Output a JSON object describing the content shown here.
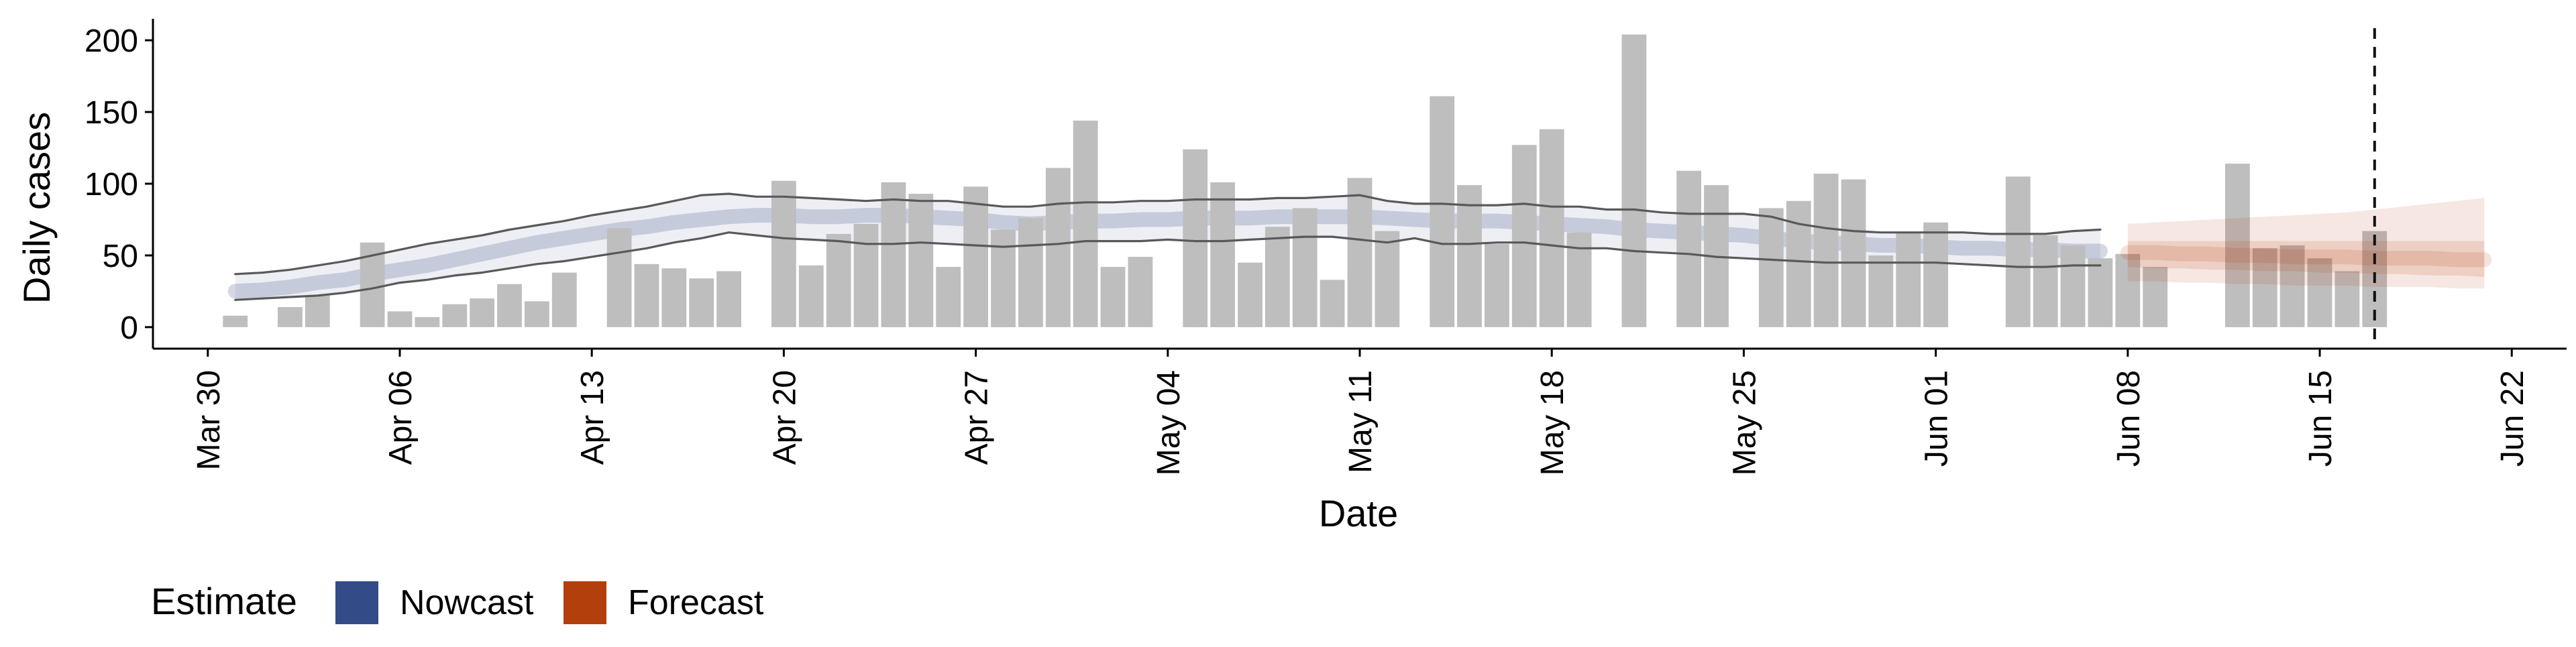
{
  "chart_data": {
    "type": "bar",
    "title": "",
    "xlabel": "Date",
    "ylabel": "Daily cases",
    "ylim": [
      -15,
      215
    ],
    "yticks": [
      0,
      50,
      100,
      150,
      200
    ],
    "x_range": [
      "2020-03-28",
      "2020-06-24"
    ],
    "xticks": [
      {
        "date": "2020-03-30",
        "label": "Mar 30"
      },
      {
        "date": "2020-04-06",
        "label": "Apr 06"
      },
      {
        "date": "2020-04-13",
        "label": "Apr 13"
      },
      {
        "date": "2020-04-20",
        "label": "Apr 20"
      },
      {
        "date": "2020-04-27",
        "label": "Apr 27"
      },
      {
        "date": "2020-05-04",
        "label": "May 04"
      },
      {
        "date": "2020-05-11",
        "label": "May 11"
      },
      {
        "date": "2020-05-18",
        "label": "May 18"
      },
      {
        "date": "2020-05-25",
        "label": "May 25"
      },
      {
        "date": "2020-06-01",
        "label": "Jun 01"
      },
      {
        "date": "2020-06-08",
        "label": "Jun 08"
      },
      {
        "date": "2020-06-15",
        "label": "Jun 15"
      },
      {
        "date": "2020-06-22",
        "label": "Jun 22"
      }
    ],
    "reported_cases": {
      "start_date": "2020-03-31",
      "values": [
        8,
        0,
        14,
        22,
        0,
        59,
        11,
        7,
        16,
        20,
        30,
        18,
        38,
        0,
        69,
        44,
        41,
        34,
        39,
        0,
        102,
        43,
        65,
        72,
        101,
        93,
        42,
        98,
        68,
        76,
        111,
        144,
        42,
        49,
        0,
        124,
        101,
        45,
        70,
        83,
        33,
        104,
        67,
        0,
        161,
        99,
        58,
        127,
        138,
        66,
        0,
        204,
        0,
        109,
        99,
        0,
        83,
        88,
        107,
        103,
        50,
        66,
        73,
        0,
        0,
        105,
        64,
        57,
        48,
        51,
        42,
        0,
        0,
        114,
        55,
        57,
        48,
        39,
        67
      ],
      "color": "#bebebe"
    },
    "nowcast": {
      "start_date": "2020-03-31",
      "median": [
        25,
        26,
        28,
        31,
        33,
        37,
        40,
        43,
        47,
        51,
        55,
        59,
        62,
        65,
        68,
        70,
        73,
        75,
        77,
        78,
        78,
        77,
        77,
        78,
        78,
        77,
        76,
        75,
        73,
        72,
        73,
        74,
        74,
        75,
        75,
        76,
        76,
        76,
        77,
        77,
        77,
        77,
        76,
        75,
        74,
        74,
        74,
        73,
        72,
        71,
        70,
        68,
        67,
        66,
        65,
        64,
        62,
        60,
        59,
        58,
        57,
        57,
        56,
        55,
        55,
        54,
        54,
        53,
        53
      ],
      "lower": [
        19,
        20,
        21,
        22,
        24,
        27,
        31,
        33,
        36,
        38,
        41,
        44,
        46,
        49,
        52,
        55,
        59,
        62,
        66,
        64,
        62,
        61,
        60,
        58,
        58,
        59,
        58,
        57,
        56,
        57,
        58,
        60,
        60,
        60,
        61,
        60,
        60,
        61,
        62,
        63,
        63,
        61,
        59,
        62,
        58,
        58,
        59,
        59,
        57,
        55,
        55,
        53,
        52,
        51,
        49,
        48,
        47,
        46,
        45,
        45,
        45,
        45,
        45,
        44,
        43,
        42,
        42,
        43,
        43
      ],
      "upper": [
        37,
        38,
        40,
        43,
        46,
        50,
        54,
        58,
        61,
        64,
        68,
        71,
        74,
        78,
        81,
        84,
        88,
        92,
        93,
        91,
        91,
        90,
        89,
        88,
        89,
        88,
        88,
        86,
        84,
        84,
        86,
        87,
        87,
        88,
        88,
        89,
        89,
        89,
        90,
        90,
        91,
        92,
        88,
        86,
        86,
        85,
        85,
        86,
        84,
        84,
        82,
        82,
        80,
        79,
        79,
        79,
        77,
        72,
        69,
        67,
        66,
        66,
        66,
        66,
        65,
        65,
        65,
        67,
        68
      ],
      "color": "#3a4f8a"
    },
    "forecast": {
      "start_date": "2020-06-08",
      "median": [
        52,
        52,
        51,
        51,
        50,
        50,
        49,
        49,
        49,
        48,
        48,
        48,
        47,
        47
      ],
      "lower_50": [
        42,
        41,
        41,
        40,
        40,
        39,
        39,
        38,
        38,
        37,
        37,
        36,
        36,
        35
      ],
      "upper_50": [
        60,
        60,
        60,
        60,
        60,
        60,
        60,
        60,
        60,
        60,
        60,
        60,
        60,
        60
      ],
      "lower_90": [
        32,
        32,
        31,
        31,
        30,
        30,
        29,
        29,
        29,
        28,
        28,
        28,
        27,
        27
      ],
      "upper_90": [
        72,
        73,
        74,
        75,
        76,
        77,
        78,
        79,
        80,
        82,
        84,
        86,
        88,
        90
      ],
      "color": "#b73d0e"
    },
    "date_marker": "2020-06-17",
    "legend": {
      "title": "Estimate",
      "placement": "bottom-left",
      "entries": [
        {
          "label": "Nowcast",
          "color": "#334b87"
        },
        {
          "label": "Forecast",
          "color": "#b33f0c"
        }
      ]
    }
  }
}
